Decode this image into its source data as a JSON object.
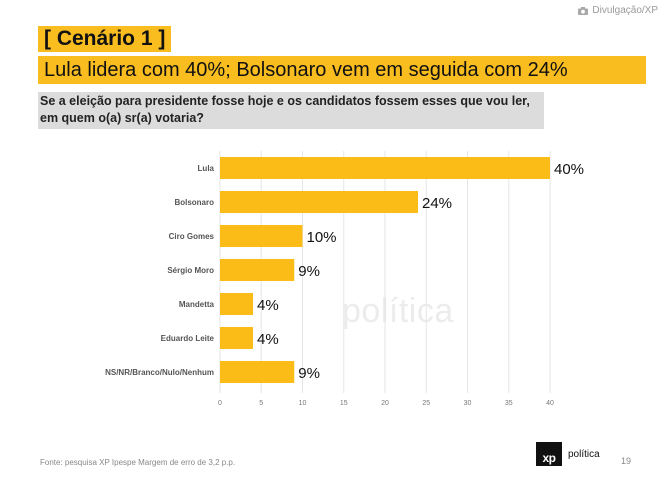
{
  "credit": {
    "icon": "camera-icon",
    "text": "Divulgação/XP"
  },
  "header": {
    "scenario": "[ Cenário 1 ]",
    "headline": "Lula lidera com 40%;  Bolsonaro vem em seguida com 24%",
    "question": "Se a eleição para presidente fosse hoje e os candidatos fossem esses que vou ler, em quem o(a) sr(a) votaria?"
  },
  "colors": {
    "accent": "#f9bd20",
    "bar": "#fbbc17",
    "grid": "#e6e6e6"
  },
  "chart_data": {
    "type": "bar",
    "orientation": "horizontal",
    "categories": [
      "Lula",
      "Bolsonaro",
      "Ciro Gomes",
      "Sérgio Moro",
      "Mandetta",
      "Eduardo Leite",
      "NS/NR/Branco/Nulo/Nenhum"
    ],
    "values": [
      40,
      24,
      10,
      9,
      4,
      4,
      9
    ],
    "data_labels": [
      "40%",
      "24%",
      "10%",
      "9%",
      "4%",
      "4%",
      "9%"
    ],
    "xlim": [
      0,
      40
    ],
    "xticks": [
      0,
      5,
      10,
      15,
      20,
      25,
      30,
      35,
      40
    ],
    "grid": true
  },
  "watermark": "política",
  "footer": {
    "source": "Fonte: pesquisa XP Ipespe Margem de erro de 3,2 p.p.",
    "logo_mark": "xp",
    "logo_text": "política",
    "page": "19"
  }
}
